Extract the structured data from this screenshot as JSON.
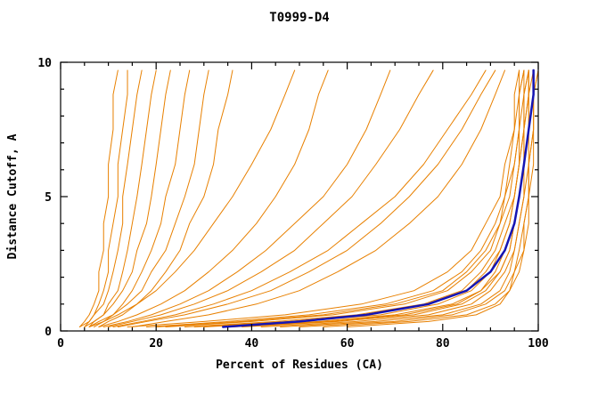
{
  "page": {
    "background": "#ffffff"
  },
  "chart_data": {
    "type": "line",
    "title": "T0999-D4",
    "xlabel": "Percent of Residues (CA)",
    "ylabel": "Distance Cutoff, A",
    "xlim": [
      0,
      100
    ],
    "ylim": [
      0,
      10
    ],
    "x_major_ticks": [
      0,
      20,
      40,
      60,
      80,
      100
    ],
    "x_minor_step": 5,
    "y_major_ticks": [
      0,
      5,
      10
    ],
    "y_minor_step": 1,
    "grid": false,
    "legend": "none",
    "colors": {
      "model_lines": "#e88000",
      "reference_line": "#1515b4",
      "frame": "#000000",
      "background": "#ffffff"
    },
    "y_anchors": [
      0.15,
      0.35,
      0.6,
      1.0,
      1.5,
      2.2,
      3.0,
      4.0,
      5.0,
      6.2,
      7.5,
      8.8,
      9.7
    ],
    "model_series_x": [
      [
        4,
        5,
        6,
        7,
        8,
        8,
        9,
        9,
        10,
        10,
        11,
        11,
        12
      ],
      [
        5,
        6,
        7,
        8,
        9,
        10,
        10,
        11,
        12,
        12,
        13,
        14,
        14
      ],
      [
        4,
        6,
        7,
        9,
        10,
        11,
        12,
        13,
        13,
        14,
        15,
        16,
        17
      ],
      [
        6,
        7,
        9,
        10,
        12,
        13,
        14,
        15,
        16,
        17,
        18,
        19,
        20
      ],
      [
        5,
        7,
        9,
        11,
        13,
        15,
        16,
        18,
        19,
        20,
        21,
        22,
        23
      ],
      [
        7,
        9,
        11,
        13,
        15,
        17,
        19,
        21,
        22,
        24,
        25,
        26,
        27
      ],
      [
        6,
        8,
        11,
        14,
        17,
        19,
        22,
        24,
        26,
        28,
        29,
        30,
        31
      ],
      [
        8,
        10,
        13,
        16,
        19,
        22,
        25,
        27,
        30,
        32,
        33,
        35,
        36
      ],
      [
        6,
        9,
        12,
        16,
        20,
        24,
        28,
        32,
        36,
        40,
        44,
        47,
        49
      ],
      [
        8,
        12,
        16,
        21,
        26,
        31,
        36,
        41,
        45,
        49,
        52,
        54,
        56
      ],
      [
        10,
        15,
        21,
        28,
        35,
        42,
        49,
        55,
        61,
        66,
        71,
        75,
        78
      ],
      [
        9,
        14,
        19,
        25,
        31,
        37,
        43,
        49,
        55,
        60,
        64,
        67,
        69
      ],
      [
        12,
        18,
        26,
        35,
        44,
        52,
        60,
        67,
        73,
        79,
        84,
        88,
        91
      ],
      [
        15,
        22,
        31,
        41,
        50,
        58,
        66,
        73,
        79,
        84,
        88,
        91,
        93
      ],
      [
        11,
        17,
        24,
        32,
        40,
        48,
        56,
        63,
        70,
        76,
        81,
        86,
        89
      ],
      [
        18,
        35,
        52,
        68,
        78,
        84,
        88,
        91,
        93,
        94,
        95,
        96,
        96
      ],
      [
        22,
        40,
        57,
        72,
        81,
        86,
        90,
        92,
        94,
        95,
        96,
        96,
        97
      ],
      [
        26,
        45,
        62,
        76,
        84,
        88,
        91,
        93,
        95,
        96,
        96,
        97,
        97
      ],
      [
        30,
        50,
        67,
        79,
        86,
        90,
        92,
        94,
        95,
        96,
        97,
        97,
        98
      ],
      [
        34,
        54,
        70,
        82,
        88,
        91,
        93,
        95,
        96,
        97,
        97,
        98,
        98
      ],
      [
        38,
        58,
        74,
        84,
        89,
        92,
        94,
        95,
        96,
        97,
        98,
        98,
        98
      ],
      [
        42,
        62,
        77,
        86,
        90,
        93,
        95,
        96,
        97,
        97,
        98,
        98,
        99
      ],
      [
        46,
        66,
        80,
        88,
        92,
        94,
        95,
        96,
        97,
        98,
        98,
        99,
        99
      ],
      [
        50,
        70,
        82,
        89,
        93,
        95,
        96,
        97,
        98,
        98,
        99,
        99,
        99
      ],
      [
        55,
        73,
        85,
        91,
        94,
        95,
        97,
        97,
        98,
        98,
        99,
        99,
        100
      ],
      [
        60,
        77,
        87,
        92,
        94,
        96,
        97,
        98,
        98,
        99,
        99,
        99,
        100
      ],
      [
        14,
        30,
        47,
        63,
        74,
        81,
        86,
        89,
        92,
        93,
        95,
        95,
        96
      ],
      [
        20,
        38,
        55,
        70,
        80,
        85,
        89,
        92,
        93,
        95,
        96,
        96,
        97
      ],
      [
        28,
        48,
        64,
        77,
        85,
        89,
        92,
        94,
        95,
        96,
        97,
        97,
        98
      ],
      [
        36,
        56,
        72,
        83,
        88,
        92,
        94,
        95,
        96,
        97,
        97,
        98,
        98
      ]
    ],
    "reference_series_x": [
      34,
      50,
      64,
      77,
      85,
      90,
      93,
      95,
      96,
      97,
      98,
      99,
      99
    ]
  }
}
